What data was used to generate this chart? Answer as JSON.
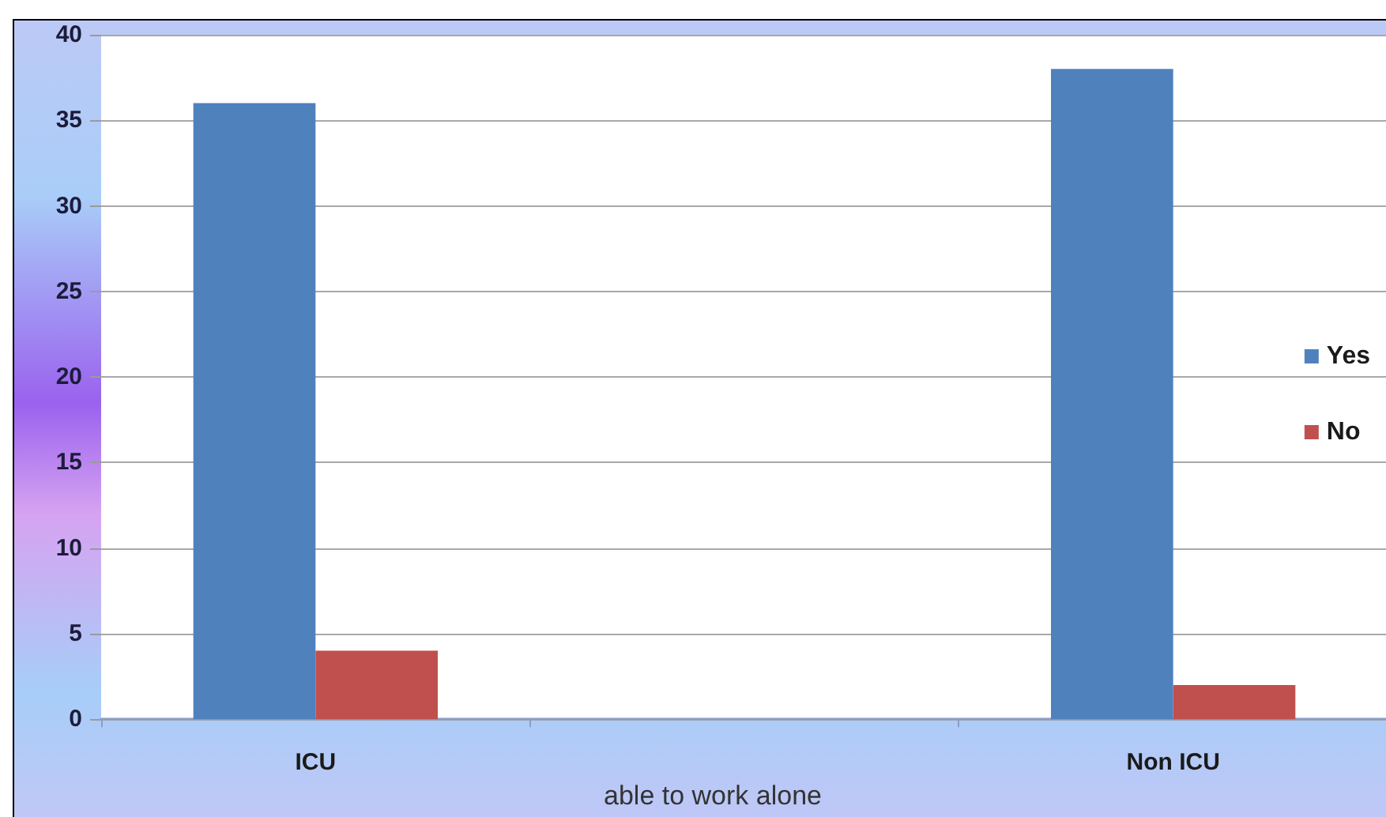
{
  "chart_data": {
    "type": "bar",
    "xlabel": "able to work alone",
    "categories": [
      "ICU",
      null,
      "Non ICU"
    ],
    "series": [
      {
        "name": "Yes",
        "color": "#4f81bd",
        "values": [
          36,
          null,
          38
        ]
      },
      {
        "name": "No",
        "color": "#c0504d",
        "values": [
          4,
          null,
          2
        ]
      }
    ],
    "ylim": [
      0,
      40
    ],
    "yticks": [
      0,
      5,
      10,
      15,
      20,
      25,
      30,
      35,
      40
    ],
    "grid": "y",
    "legend": "right"
  }
}
